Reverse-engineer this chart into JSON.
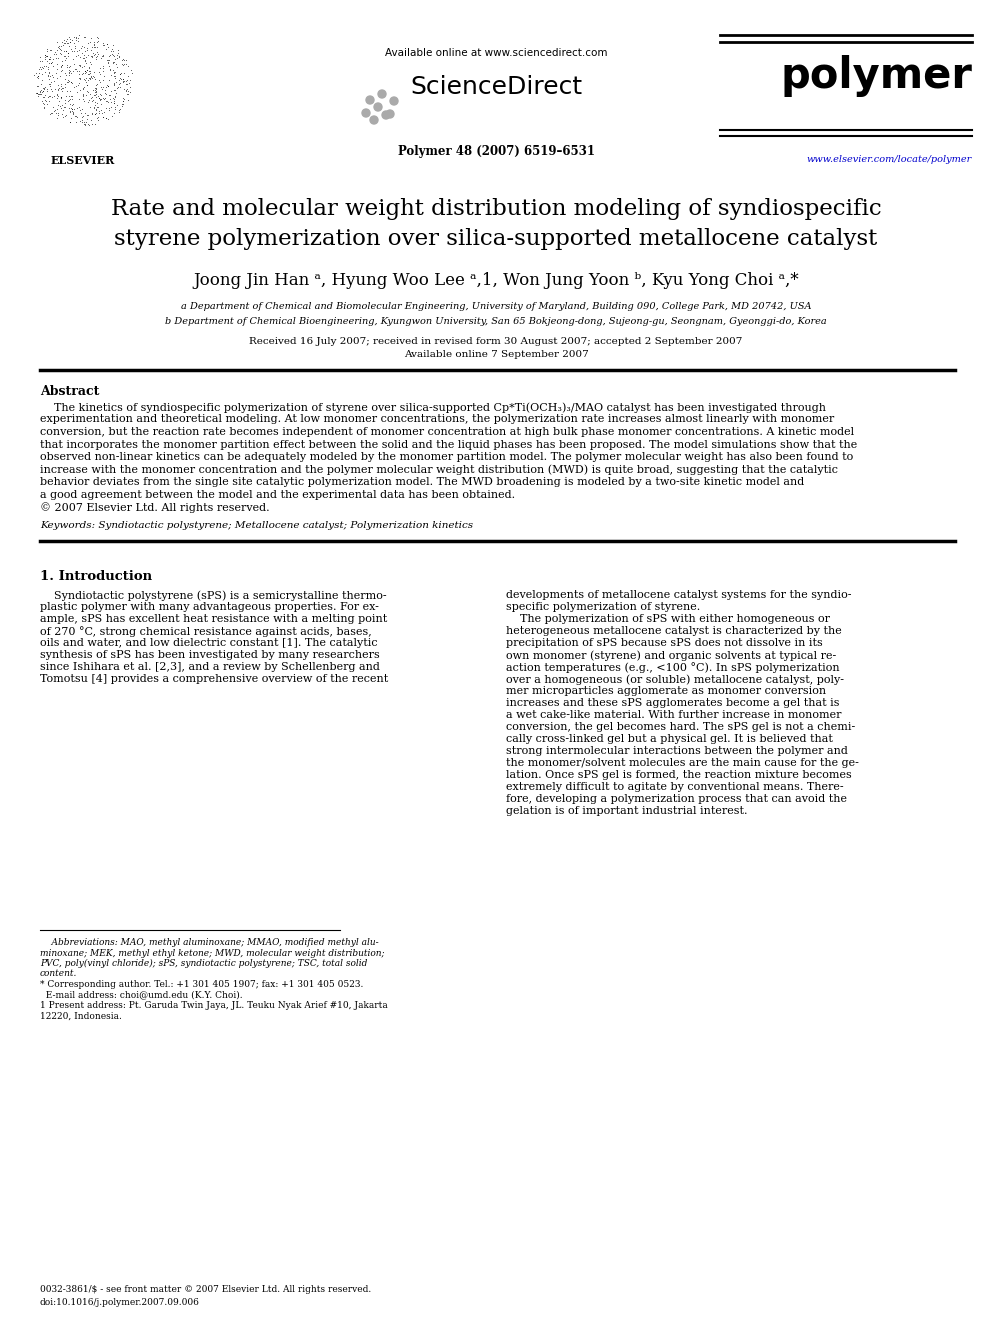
{
  "bg_color": "#ffffff",
  "title_line1": "Rate and molecular weight distribution modeling of syndiospecific",
  "title_line2": "styrene polymerization over silica-supported metallocene catalyst",
  "affil_a": "a Department of Chemical and Biomolecular Engineering, University of Maryland, Building 090, College Park, MD 20742, USA",
  "affil_b": "b Department of Chemical Bioengineering, Kyungwon University, San 65 Bokjeong-dong, Sujeong-gu, Seongnam, Gyeonggi-do, Korea",
  "received": "Received 16 July 2007; received in revised form 30 August 2007; accepted 2 September 2007",
  "available": "Available online 7 September 2007",
  "journal_info": "Polymer 48 (2007) 6519–6531",
  "journal_url": "www.elsevier.com/locate/polymer",
  "available_online": "Available online at www.sciencedirect.com",
  "abstract_title": "Abstract",
  "keywords": "Keywords: Syndiotactic polystyrene; Metallocene catalyst; Polymerization kinetics",
  "section1_title": "1. Introduction",
  "footer_issn": "0032-3861/$ - see front matter © 2007 Elsevier Ltd. All rights reserved.",
  "footer_doi": "doi:10.1016/j.polymer.2007.09.006",
  "url_color": "#0000cc",
  "abstract_lines": [
    "    The kinetics of syndiospecific polymerization of styrene over silica-supported Cp*Ti(OCH₃)₃/MAO catalyst has been investigated through",
    "experimentation and theoretical modeling. At low monomer concentrations, the polymerization rate increases almost linearly with monomer",
    "conversion, but the reaction rate becomes independent of monomer concentration at high bulk phase monomer concentrations. A kinetic model",
    "that incorporates the monomer partition effect between the solid and the liquid phases has been proposed. The model simulations show that the",
    "observed non-linear kinetics can be adequately modeled by the monomer partition model. The polymer molecular weight has also been found to",
    "increase with the monomer concentration and the polymer molecular weight distribution (MWD) is quite broad, suggesting that the catalytic",
    "behavior deviates from the single site catalytic polymerization model. The MWD broadening is modeled by a two-site kinetic model and",
    "a good agreement between the model and the experimental data has been obtained.",
    "© 2007 Elsevier Ltd. All rights reserved."
  ],
  "col1_lines": [
    "    Syndiotactic polystyrene (sPS) is a semicrystalline thermo-",
    "plastic polymer with many advantageous properties. For ex-",
    "ample, sPS has excellent heat resistance with a melting point",
    "of 270 °C, strong chemical resistance against acids, bases,",
    "oils and water, and low dielectric constant [1]. The catalytic",
    "synthesis of sPS has been investigated by many researchers",
    "since Ishihara et al. [2,3], and a review by Schellenberg and",
    "Tomotsu [4] provides a comprehensive overview of the recent"
  ],
  "col2_lines": [
    "developments of metallocene catalyst systems for the syndio-",
    "specific polymerization of styrene.",
    "    The polymerization of sPS with either homogeneous or",
    "heterogeneous metallocene catalyst is characterized by the",
    "precipitation of sPS because sPS does not dissolve in its",
    "own monomer (styrene) and organic solvents at typical re-",
    "action temperatures (e.g., <100 °C). In sPS polymerization",
    "over a homogeneous (or soluble) metallocene catalyst, poly-",
    "mer microparticles agglomerate as monomer conversion",
    "increases and these sPS agglomerates become a gel that is",
    "a wet cake-like material. With further increase in monomer",
    "conversion, the gel becomes hard. The sPS gel is not a chemi-",
    "cally cross-linked gel but a physical gel. It is believed that",
    "strong intermolecular interactions between the polymer and",
    "the monomer/solvent molecules are the main cause for the ge-",
    "lation. Once sPS gel is formed, the reaction mixture becomes",
    "extremely difficult to agitate by conventional means. There-",
    "fore, developing a polymerization process that can avoid the",
    "gelation is of important industrial interest."
  ],
  "fn_lines": [
    "    Abbreviations: MAO, methyl aluminoxane; MMAO, modified methyl alu-",
    "minoxane; MEK, methyl ethyl ketone; MWD, molecular weight distribution;",
    "PVC, poly(vinyl chloride); sPS, syndiotactic polystyrene; TSC, total solid",
    "content."
  ]
}
